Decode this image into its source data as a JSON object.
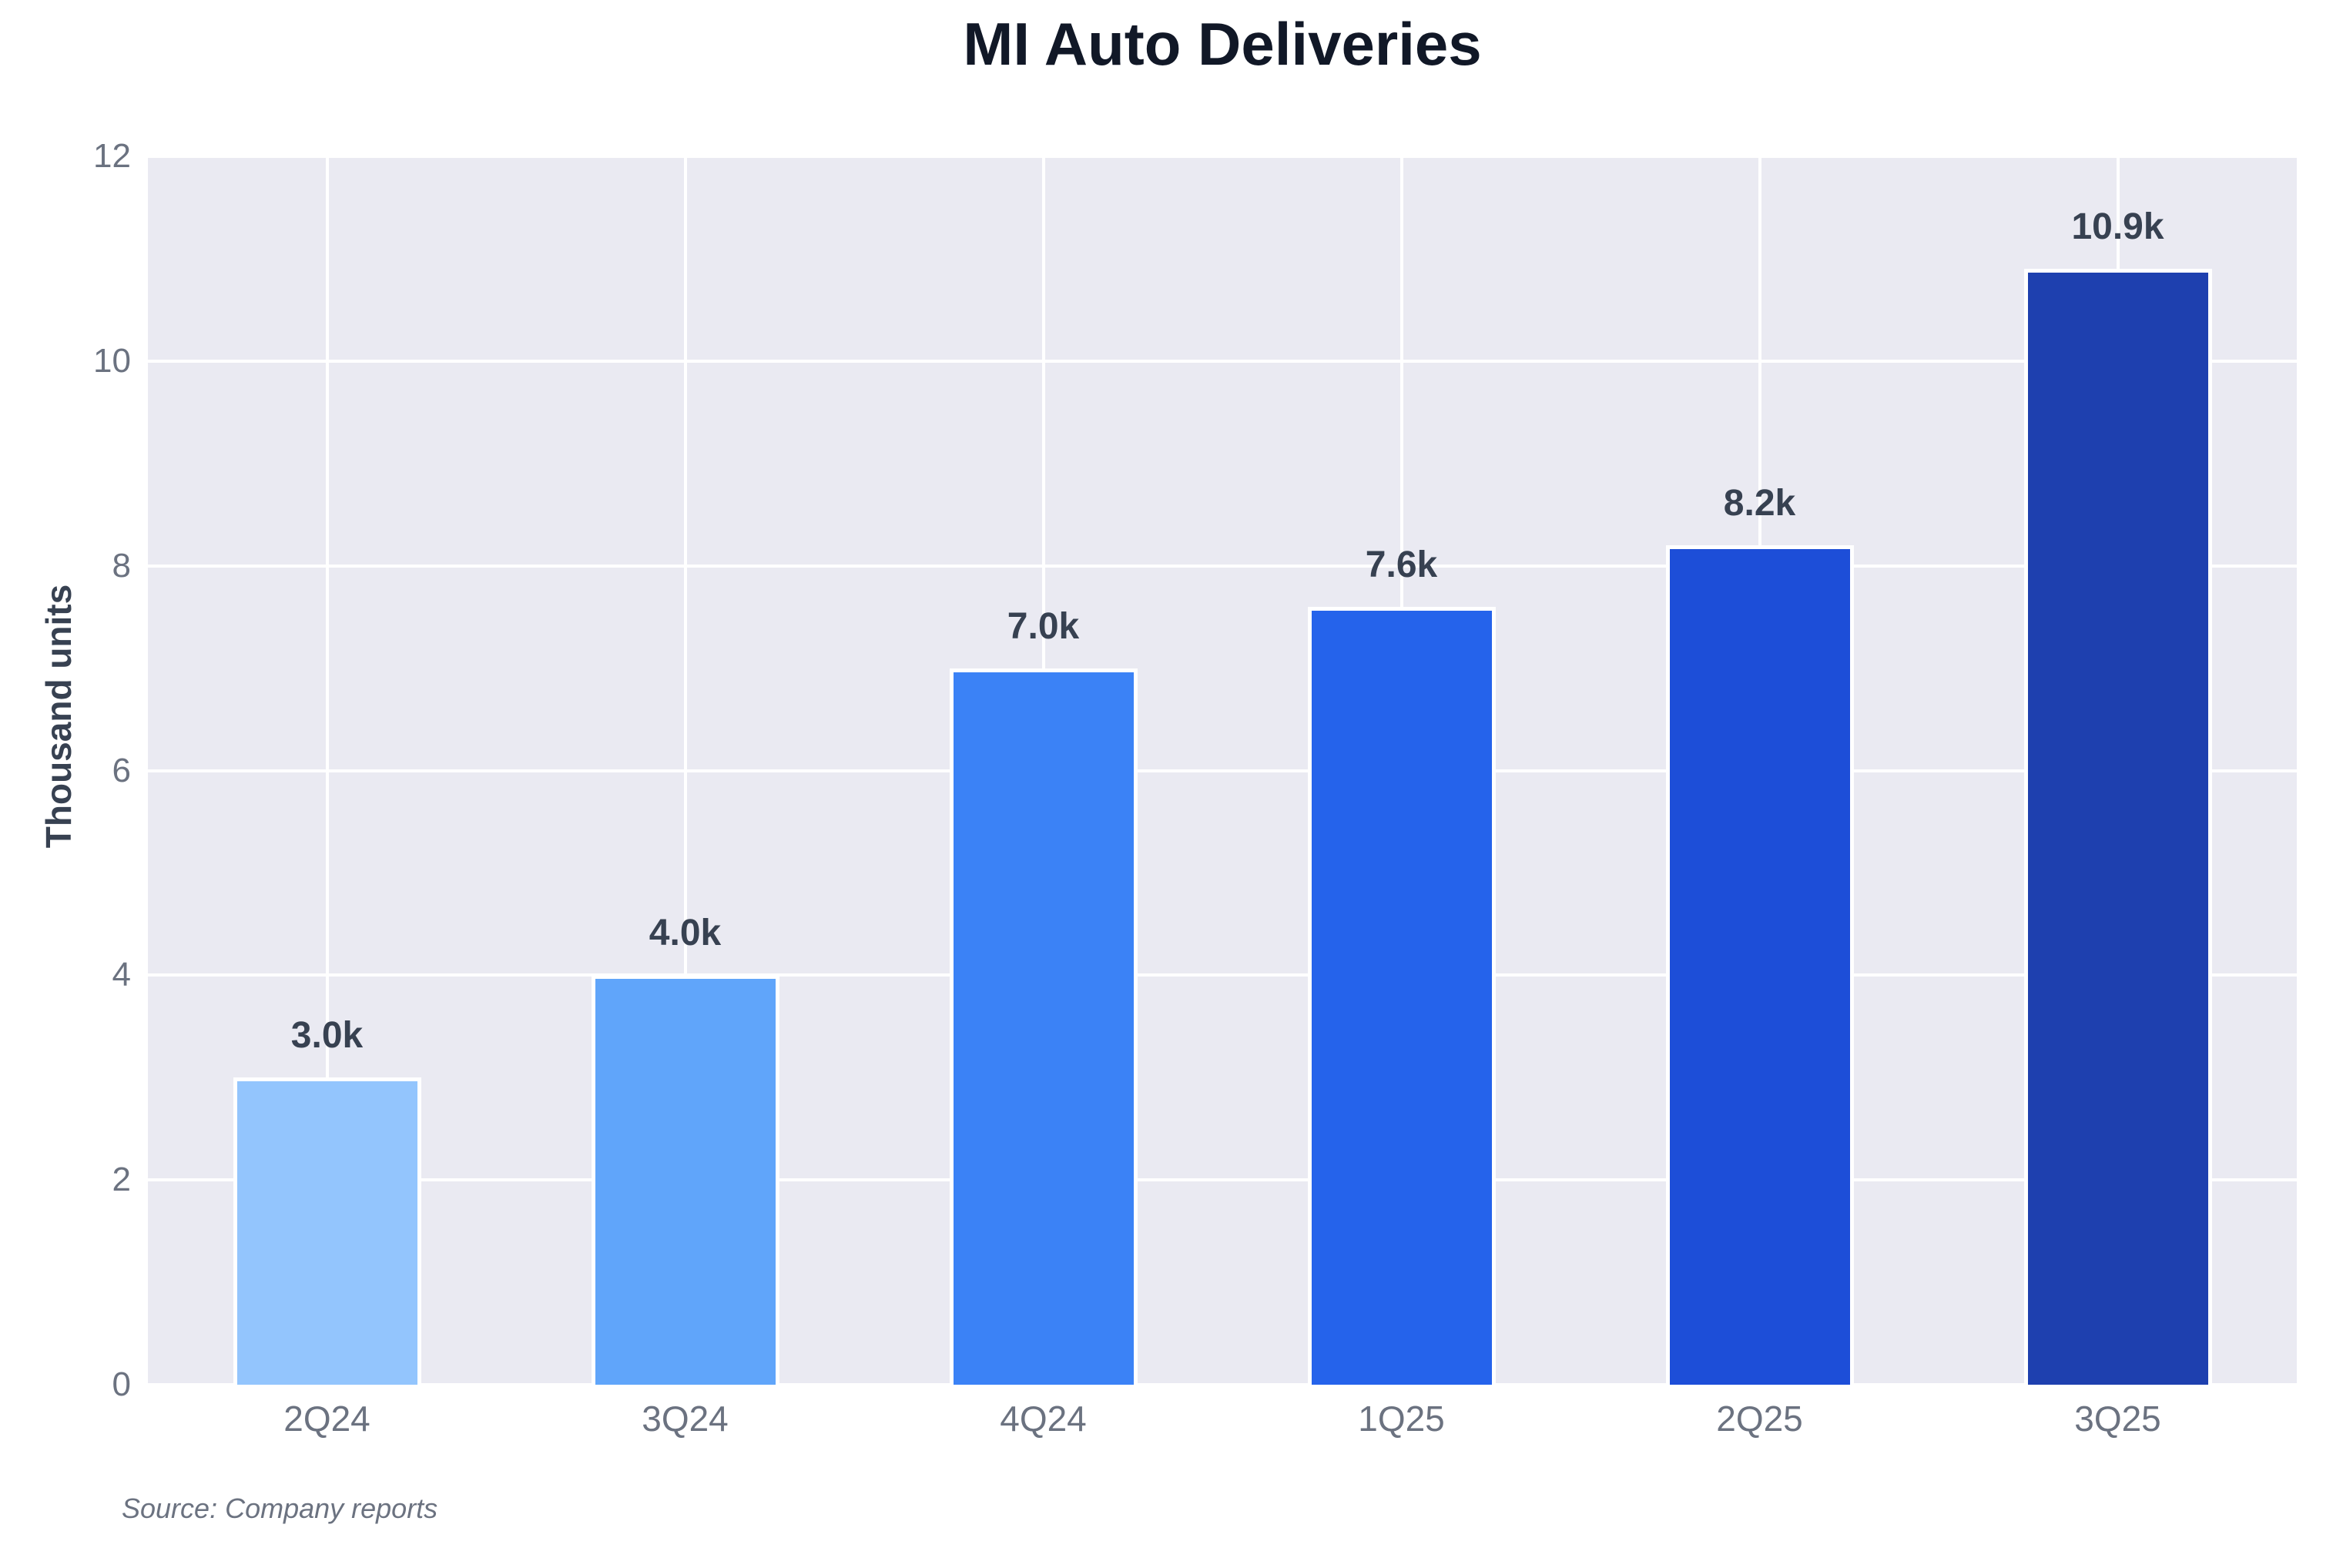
{
  "chart_data": {
    "type": "bar",
    "title": "MI Auto Deliveries",
    "ylabel": "Thousand units",
    "xlabel": "",
    "source_note": "Source: Company reports",
    "categories": [
      "2Q24",
      "3Q24",
      "4Q24",
      "1Q25",
      "2Q25",
      "3Q25"
    ],
    "values": [
      3.0,
      4.0,
      7.0,
      7.6,
      8.2,
      10.9
    ],
    "value_labels": [
      "3.0k",
      "4.0k",
      "7.0k",
      "7.6k",
      "8.2k",
      "10.9k"
    ],
    "bar_colors": [
      "#93c5fd",
      "#60a5fa",
      "#3b82f6",
      "#2563eb",
      "#1d4ed8",
      "#1e40af"
    ],
    "ylim": [
      0,
      12
    ],
    "yticks": [
      0,
      2,
      4,
      6,
      8,
      10,
      12
    ],
    "grid": true,
    "legend_position": "none",
    "colors": {
      "plot_bg": "#eaeaf2",
      "grid": "#ffffff",
      "bar_edge": "#ffffff",
      "title": "#111827",
      "axis_label": "#374151",
      "value_label": "#374151",
      "tick": "#6b7280",
      "source": "#6b7280"
    }
  }
}
